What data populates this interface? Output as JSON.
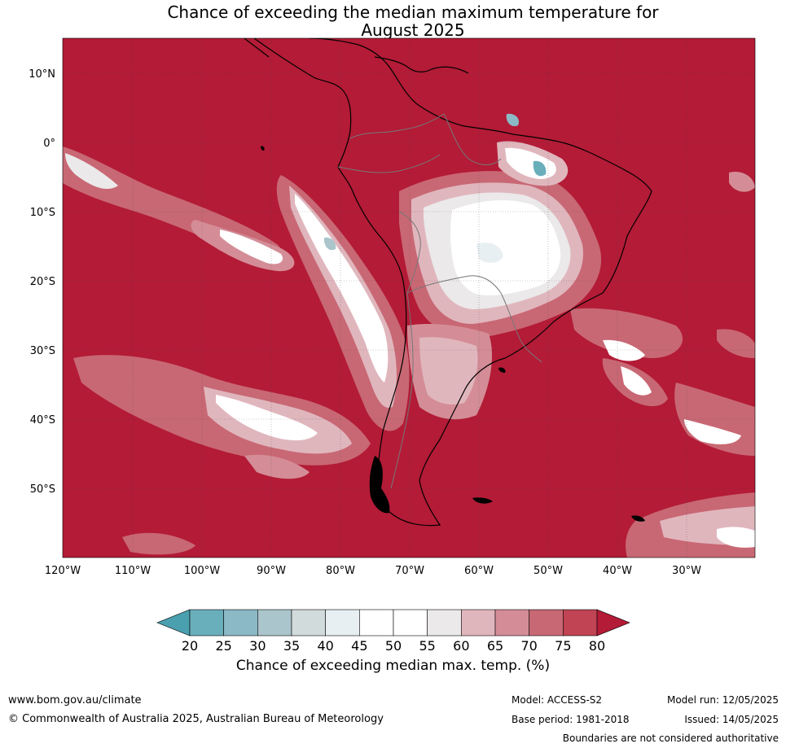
{
  "title": {
    "line1": "Chance of exceeding the median maximum temperature for",
    "line2": "August 2025"
  },
  "map": {
    "lat_labels": [
      "10°N",
      "0°",
      "10°S",
      "20°S",
      "30°S",
      "40°S",
      "50°S"
    ],
    "lon_labels": [
      "120°W",
      "110°W",
      "100°W",
      "90°W",
      "80°W",
      "70°W",
      "60°W",
      "50°W",
      "40°W",
      "30°W"
    ],
    "background_color": "#b31b36"
  },
  "colorbar": {
    "ticks": [
      "20",
      "25",
      "30",
      "35",
      "40",
      "45",
      "50",
      "55",
      "60",
      "65",
      "70",
      "75",
      "80"
    ],
    "colors": [
      "#4aa0af",
      "#69aebb",
      "#8bb9c5",
      "#aac5cc",
      "#d2dbdc",
      "#e8eff2",
      "#ffffff",
      "#ffffff",
      "#ebe9ea",
      "#e0b6bd",
      "#d48d97",
      "#c86874",
      "#c04453",
      "#b31b36"
    ],
    "title": "Chance of exceeding median max. temp. (%)"
  },
  "footer": {
    "url": "www.bom.gov.au/climate",
    "copyright": "© Commonwealth of Australia 2025, Australian Bureau of Meteorology",
    "model": "Model: ACCESS-S2",
    "base_period": "Base period: 1981-2018",
    "model_run": "Model run: 12/05/2025",
    "issued": "Issued: 14/05/2025",
    "disclaimer": "Boundaries are not considered authoritative"
  }
}
